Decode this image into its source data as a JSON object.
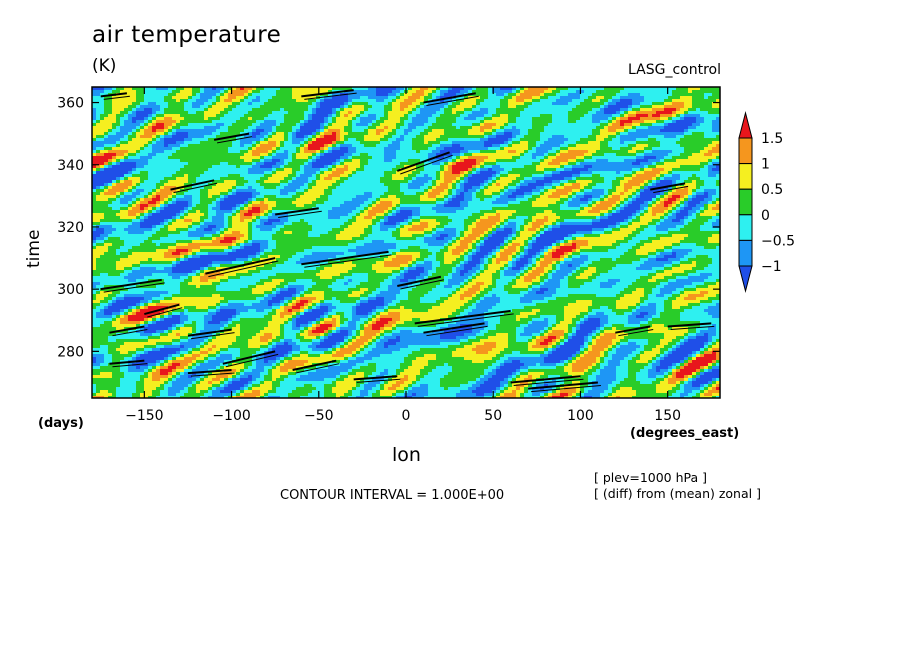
{
  "chart_data": {
    "type": "heatmap",
    "title": "air temperature",
    "units": "(K)",
    "dataset": "LASG_control",
    "xlabel": "lon",
    "ylabel": "time",
    "x_units": "(degrees_east)",
    "y_units": "(days)",
    "xlim": [
      -180,
      180
    ],
    "ylim": [
      265,
      365
    ],
    "x_ticks": [
      -150,
      -100,
      -50,
      0,
      50,
      100,
      150
    ],
    "y_ticks": [
      280,
      300,
      320,
      340,
      360
    ],
    "colorbar": {
      "levels": [
        "1.5",
        "1",
        "0.5",
        "0",
        "-0.5",
        "-1"
      ],
      "colors": [
        "#e8161c",
        "#f5961e",
        "#f5ef20",
        "#29cc29",
        "#2ef0f0",
        "#1e96f5",
        "#1f4fe8"
      ]
    },
    "contour_interval": "CONTOUR INTERVAL = 1.000E+00",
    "notes": [
      "[ plev=1000 hPa ]",
      "[ (diff) from (mean) zonal ]"
    ]
  }
}
